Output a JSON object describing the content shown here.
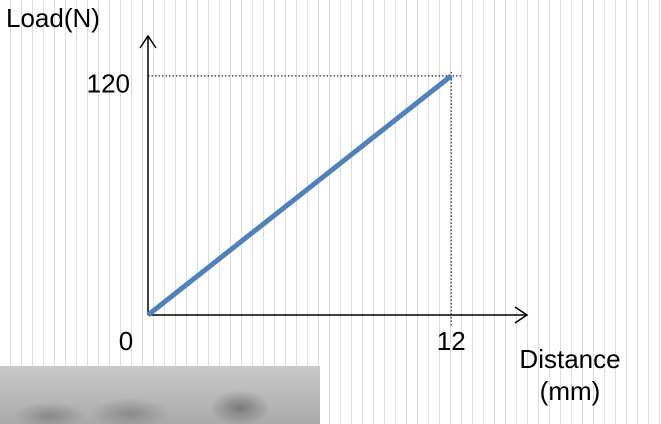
{
  "chart_data": {
    "type": "line",
    "ylabel": "Load(N)",
    "xlabel": "Distance (mm)",
    "x": [
      0,
      12
    ],
    "values": [
      0,
      120
    ],
    "color": "#4f81bd",
    "xlim": [
      0,
      15
    ],
    "ylim": [
      0,
      140
    ],
    "xticks": [
      0,
      12
    ],
    "yticks": [
      120
    ]
  }
}
